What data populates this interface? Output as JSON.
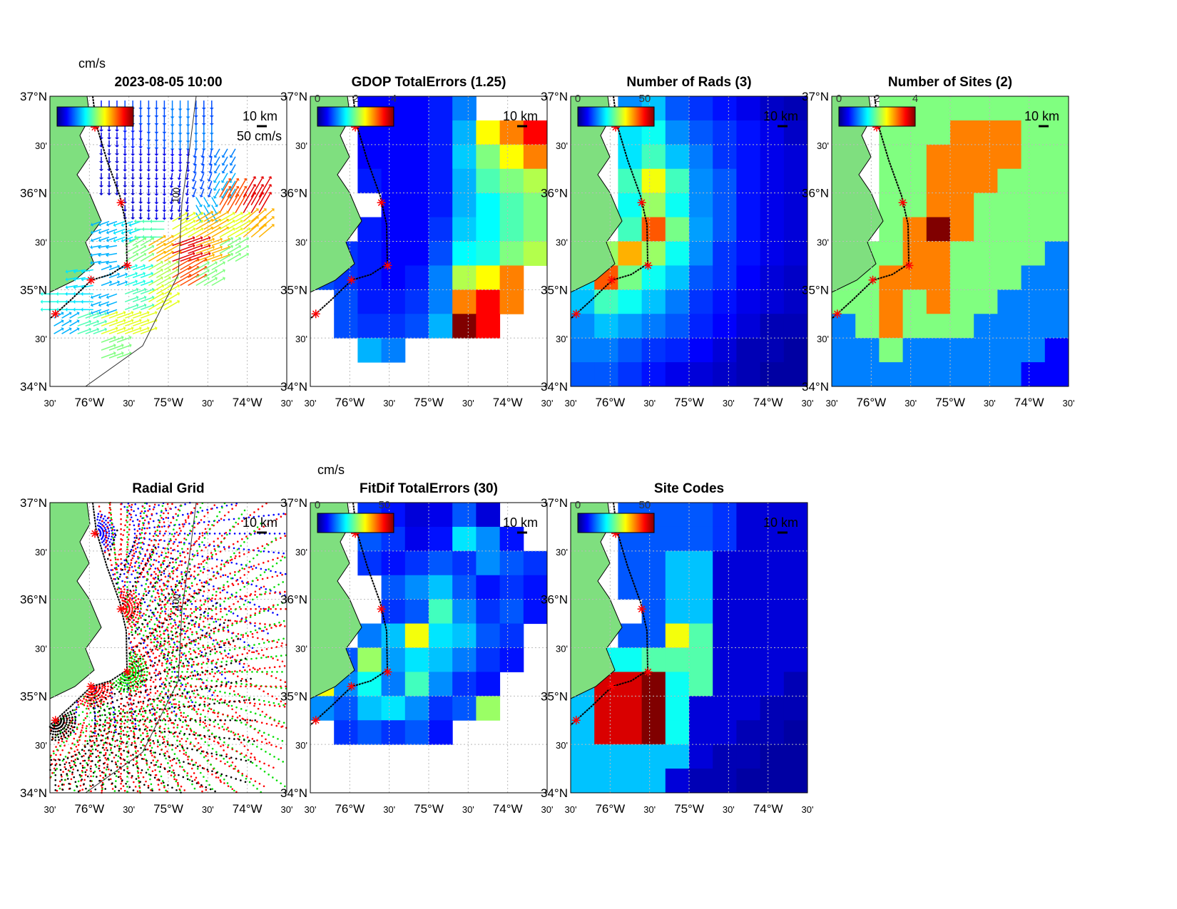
{
  "chart_data": [
    {
      "type": "quiver",
      "id": "quiver",
      "title": "2023-08-05 10:00",
      "colorbar_units": "cm/s",
      "colorbar_range": [
        0,
        100
      ],
      "reference_arrow_label": "50 cm/s",
      "scale_label": "10 km",
      "isobath_label": "100",
      "grid_lon": [
        -76.35,
        -76.05,
        -75.75,
        -75.45,
        -75.15,
        -74.85,
        -74.55,
        -74.25,
        -73.95,
        -73.65
      ],
      "grid_lat": [
        36.875,
        36.625,
        36.375,
        36.125,
        35.875,
        35.625,
        35.375,
        35.125,
        34.875,
        34.625,
        34.375,
        34.125
      ],
      "speed_cm_s": [
        [
          null,
          null,
          15,
          20,
          20,
          25,
          20,
          null,
          null,
          null
        ],
        [
          null,
          null,
          10,
          15,
          20,
          25,
          25,
          null,
          null,
          null
        ],
        [
          null,
          null,
          8,
          10,
          10,
          12,
          20,
          25,
          null,
          null
        ],
        [
          null,
          null,
          8,
          8,
          10,
          10,
          20,
          30,
          null,
          null
        ],
        [
          null,
          null,
          null,
          8,
          10,
          10,
          30,
          80,
          90,
          null
        ],
        [
          null,
          null,
          30,
          35,
          45,
          60,
          70,
          60,
          70,
          null
        ],
        [
          null,
          null,
          30,
          50,
          70,
          90,
          70,
          50,
          null,
          null
        ],
        [
          null,
          35,
          30,
          40,
          55,
          80,
          50,
          null,
          null,
          null
        ],
        [
          40,
          35,
          30,
          45,
          60,
          null,
          null,
          null,
          null,
          null
        ],
        [
          30,
          45,
          60,
          60,
          null,
          null,
          null,
          null,
          null,
          null
        ],
        [
          null,
          null,
          50,
          null,
          null,
          null,
          null,
          null,
          null,
          null
        ],
        [
          null,
          null,
          null,
          null,
          null,
          null,
          null,
          null,
          null,
          null
        ]
      ],
      "direction_deg": [
        [
          -90,
          -90,
          -90,
          -90,
          -90,
          -90,
          -90,
          -90,
          -90,
          -90
        ],
        [
          -90,
          -90,
          -90,
          -90,
          -90,
          -90,
          -90,
          -90,
          -90,
          -90
        ],
        [
          -90,
          -90,
          -90,
          -90,
          -90,
          -90,
          -100,
          -120,
          -120,
          -120
        ],
        [
          -90,
          -90,
          -90,
          -90,
          -90,
          -100,
          -110,
          -120,
          -120,
          -120
        ],
        [
          -90,
          -90,
          -90,
          -90,
          -90,
          -100,
          -60,
          60,
          60,
          60
        ],
        [
          200,
          200,
          200,
          200,
          180,
          30,
          30,
          30,
          40,
          40
        ],
        [
          200,
          200,
          190,
          30,
          30,
          20,
          20,
          30,
          30,
          30
        ],
        [
          190,
          190,
          20,
          20,
          30,
          30,
          30,
          30,
          30,
          30
        ],
        [
          180,
          180,
          200,
          20,
          30,
          30,
          30,
          30,
          30,
          30
        ],
        [
          30,
          20,
          20,
          20,
          20,
          20,
          20,
          20,
          20,
          20
        ],
        [
          20,
          20,
          20,
          20,
          20,
          20,
          20,
          20,
          20,
          20
        ],
        [
          20,
          20,
          20,
          20,
          20,
          20,
          20,
          20,
          20,
          20
        ]
      ]
    },
    {
      "type": "heatmap",
      "id": "gdop",
      "title": "GDOP TotalErrors (1.25)",
      "contour_level": "1.25",
      "colorbar_ticks": [
        "0",
        "2",
        "4"
      ],
      "clim": [
        0,
        4
      ],
      "scale_label": "10 km",
      "values": [
        [
          null,
          null,
          0.5,
          0.5,
          0.5,
          0.6,
          1.0,
          null,
          null,
          null
        ],
        [
          null,
          null,
          0.5,
          0.5,
          0.5,
          0.6,
          1.2,
          2.5,
          3,
          3.5
        ],
        [
          null,
          null,
          0.5,
          0.5,
          0.5,
          0.6,
          1.3,
          2,
          2.5,
          3
        ],
        [
          null,
          null,
          0.6,
          0.5,
          0.5,
          0.6,
          1.2,
          1.8,
          2,
          2.2
        ],
        [
          null,
          null,
          null,
          0.5,
          0.5,
          0.6,
          1.2,
          1.5,
          1.8,
          2
        ],
        [
          null,
          null,
          0.6,
          0.5,
          0.5,
          0.7,
          1.3,
          1.5,
          1.8,
          2
        ],
        [
          null,
          0.7,
          0.6,
          0.5,
          0.5,
          0.8,
          1.5,
          1.6,
          2,
          2.2
        ],
        [
          0.8,
          0.7,
          0.6,
          0.5,
          0.6,
          1.0,
          2.2,
          2.5,
          3,
          null
        ],
        [
          null,
          0.8,
          0.6,
          0.6,
          0.7,
          1.0,
          3,
          3.5,
          3,
          null
        ],
        [
          null,
          0.8,
          0.7,
          0.7,
          0.8,
          1.2,
          4,
          3.5,
          null,
          null
        ],
        [
          null,
          null,
          1.2,
          1.0,
          null,
          null,
          null,
          null,
          null,
          null
        ],
        [
          null,
          null,
          null,
          null,
          null,
          null,
          null,
          null,
          null,
          null
        ]
      ]
    },
    {
      "type": "heatmap",
      "id": "rads",
      "title": "Number of Rads (3)",
      "contour_level": "3",
      "colorbar_ticks": [
        "0",
        "50"
      ],
      "clim": [
        0,
        57
      ],
      "scale_label": "10 km",
      "values": [
        [
          null,
          null,
          15,
          18,
          12,
          10,
          8,
          6,
          4,
          3
        ],
        [
          null,
          null,
          20,
          22,
          15,
          12,
          10,
          8,
          6,
          4
        ],
        [
          null,
          null,
          20,
          25,
          18,
          14,
          10,
          8,
          6,
          5
        ],
        [
          null,
          null,
          25,
          35,
          25,
          15,
          12,
          8,
          6,
          5
        ],
        [
          null,
          null,
          22,
          30,
          22,
          15,
          12,
          8,
          6,
          5
        ],
        [
          null,
          null,
          25,
          45,
          28,
          16,
          12,
          8,
          6,
          5
        ],
        [
          null,
          30,
          40,
          30,
          22,
          15,
          10,
          8,
          6,
          5
        ],
        [
          20,
          45,
          28,
          22,
          18,
          12,
          10,
          7,
          5,
          4
        ],
        [
          18,
          25,
          22,
          18,
          14,
          10,
          8,
          6,
          5,
          4
        ],
        [
          15,
          18,
          16,
          14,
          12,
          9,
          7,
          5,
          3,
          3
        ],
        [
          14,
          14,
          12,
          10,
          9,
          7,
          5,
          3,
          3,
          2
        ],
        [
          12,
          12,
          10,
          8,
          6,
          5,
          4,
          3,
          2,
          2
        ]
      ]
    },
    {
      "type": "heatmap",
      "id": "sites",
      "title": "Number of Sites (2)",
      "contour_level": "2",
      "colorbar_ticks": [
        "0",
        "2",
        "4"
      ],
      "clim": [
        0,
        4
      ],
      "scale_label": "10 km",
      "values": [
        [
          null,
          null,
          2,
          2,
          2,
          2,
          2,
          2,
          2,
          2
        ],
        [
          null,
          null,
          2,
          2,
          2,
          3,
          3,
          3,
          2,
          2
        ],
        [
          null,
          null,
          2,
          2,
          3,
          3,
          3,
          3,
          2,
          2
        ],
        [
          null,
          null,
          2,
          2,
          3,
          3,
          3,
          2,
          2,
          2
        ],
        [
          null,
          null,
          2,
          2,
          3,
          3,
          2,
          2,
          2,
          2
        ],
        [
          null,
          null,
          2,
          3,
          4,
          3,
          2,
          2,
          2,
          2
        ],
        [
          null,
          2,
          2,
          3,
          3,
          2,
          2,
          2,
          2,
          1
        ],
        [
          2,
          2,
          3,
          3,
          3,
          2,
          2,
          2,
          1,
          1
        ],
        [
          2,
          2,
          3,
          2,
          3,
          2,
          2,
          1,
          1,
          1
        ],
        [
          1,
          2,
          3,
          2,
          2,
          2,
          1,
          1,
          1,
          1
        ],
        [
          1,
          1,
          2,
          1,
          1,
          1,
          1,
          1,
          1,
          0.5
        ],
        [
          1,
          1,
          1,
          1,
          1,
          1,
          1,
          1,
          0.5,
          0.5
        ]
      ]
    },
    {
      "type": "scatter",
      "id": "radial",
      "title": "Radial Grid",
      "scale_label": "10 km",
      "isobath_label": "100"
    },
    {
      "type": "heatmap",
      "id": "fitdif",
      "title": "FitDif TotalErrors (30)",
      "colorbar_units": "cm/s",
      "contour_level": "30",
      "colorbar_ticks": [
        "0",
        "50"
      ],
      "clim": [
        0,
        57
      ],
      "scale_label": "10 km",
      "values": [
        [
          null,
          null,
          10,
          8,
          5,
          6,
          12,
          5,
          null,
          null
        ],
        [
          null,
          null,
          12,
          10,
          6,
          8,
          20,
          15,
          8,
          null
        ],
        [
          null,
          null,
          10,
          8,
          10,
          12,
          10,
          15,
          12,
          10
        ],
        [
          null,
          null,
          null,
          12,
          15,
          18,
          12,
          8,
          10,
          8
        ],
        [
          null,
          null,
          null,
          10,
          12,
          25,
          15,
          10,
          12,
          8
        ],
        [
          null,
          null,
          14,
          18,
          35,
          20,
          18,
          12,
          10,
          null
        ],
        [
          null,
          12,
          30,
          16,
          20,
          18,
          14,
          10,
          8,
          null
        ],
        [
          35,
          15,
          22,
          14,
          25,
          15,
          10,
          8,
          null,
          null
        ],
        [
          15,
          12,
          18,
          20,
          15,
          10,
          12,
          30,
          null,
          null
        ],
        [
          null,
          10,
          12,
          10,
          12,
          8,
          null,
          null,
          null,
          null
        ],
        [
          null,
          null,
          null,
          null,
          null,
          null,
          null,
          null,
          null,
          null
        ],
        [
          null,
          null,
          null,
          null,
          null,
          null,
          null,
          null,
          null,
          null
        ]
      ]
    },
    {
      "type": "heatmap",
      "id": "codes",
      "title": "Site Codes",
      "colorbar_ticks": [
        "0",
        "50"
      ],
      "clim": [
        0,
        57
      ],
      "scale_label": "10 km",
      "values": [
        [
          null,
          null,
          12,
          12,
          12,
          12,
          10,
          5,
          5,
          5
        ],
        [
          null,
          null,
          12,
          12,
          12,
          12,
          10,
          5,
          5,
          5
        ],
        [
          null,
          null,
          12,
          12,
          18,
          18,
          5,
          5,
          5,
          5
        ],
        [
          null,
          null,
          12,
          12,
          18,
          18,
          5,
          5,
          5,
          5
        ],
        [
          null,
          null,
          null,
          12,
          18,
          18,
          5,
          5,
          5,
          5
        ],
        [
          null,
          null,
          12,
          12,
          35,
          26,
          5,
          5,
          5,
          5
        ],
        [
          null,
          22,
          22,
          26,
          26,
          26,
          5,
          5,
          5,
          5
        ],
        [
          18,
          52,
          52,
          57,
          22,
          26,
          5,
          5,
          5,
          3
        ],
        [
          18,
          52,
          52,
          57,
          22,
          5,
          5,
          5,
          3,
          3
        ],
        [
          18,
          52,
          52,
          57,
          22,
          5,
          5,
          3,
          3,
          2
        ],
        [
          18,
          18,
          18,
          18,
          18,
          5,
          3,
          3,
          2,
          2
        ],
        [
          18,
          18,
          18,
          18,
          5,
          3,
          3,
          2,
          2,
          2
        ]
      ]
    }
  ],
  "axes": {
    "lat_ticks": [
      "37°N",
      "30'",
      "36°N",
      "30'",
      "35°N",
      "30'",
      "34°N"
    ],
    "lon_ticks": [
      "30'",
      "76°W",
      "30'",
      "75°W",
      "30'",
      "74°W",
      "30'"
    ],
    "lon_range": [
      -76.5,
      -73.5
    ],
    "lat_range": [
      34,
      37
    ],
    "grid": true
  },
  "sites": [
    {
      "lon": -75.93,
      "lat": 36.68,
      "color": "#0000ff"
    },
    {
      "lon": -75.6,
      "lat": 35.9,
      "color": "#ff0000"
    },
    {
      "lon": -75.52,
      "lat": 35.25,
      "color": "#00dd00"
    },
    {
      "lon": -75.98,
      "lat": 35.1,
      "color": "#ff0000"
    },
    {
      "lon": -76.43,
      "lat": 34.75,
      "color": "#000000"
    }
  ],
  "colors": {
    "land": "#7fdf7f",
    "site_marker": "#ff0000",
    "grid": "#bbbbbb"
  }
}
